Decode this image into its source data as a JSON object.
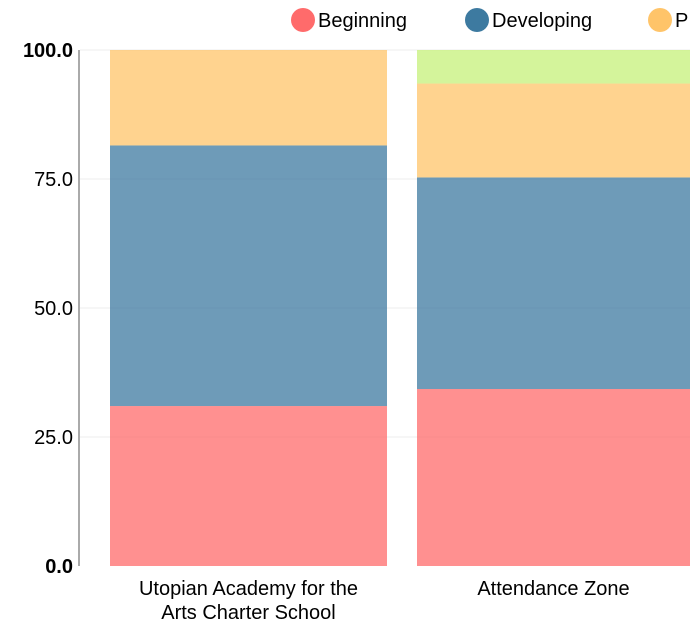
{
  "chart_data": {
    "type": "bar",
    "stacked": true,
    "categories": [
      [
        "Utopian Academy for the",
        "Arts Charter School"
      ],
      [
        "Attendance Zone"
      ]
    ],
    "series": [
      {
        "name": "Beginning",
        "color": "#ff6b6b",
        "values": [
          31.0,
          34.3
        ]
      },
      {
        "name": "Developing",
        "color": "#3d7aa0",
        "values": [
          50.5,
          41.0
        ]
      },
      {
        "name": "P",
        "color": "#ffc469",
        "values": [
          18.5,
          18.2
        ]
      },
      {
        "name": "",
        "color": "#c6f07a",
        "values": [
          0.0,
          6.5
        ]
      }
    ],
    "ylim": [
      0,
      100
    ],
    "yticks": [
      "0.0",
      "25.0",
      "50.0",
      "75.0",
      "100.0"
    ],
    "ytick_values": [
      0,
      25,
      50,
      75,
      100
    ],
    "grid": true,
    "legend_position": "top"
  }
}
